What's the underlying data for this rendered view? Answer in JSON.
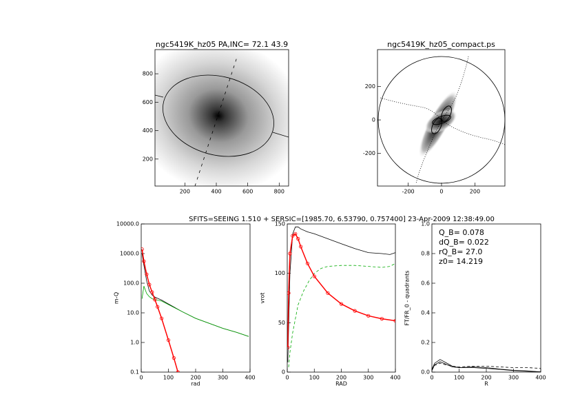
{
  "suptitle": "SFITS=SEEING 1.510 + SERSIC=[1985.70, 6.53790, 0.757400]  23-Apr-2009 12:38:49.00",
  "chart_data": [
    {
      "type": "image",
      "title": "ngc5419K_hz05 PA,INC= 72.1 43.9",
      "xlim": [
        10,
        860
      ],
      "ylim": [
        10,
        970
      ],
      "xticks": [
        200,
        400,
        600,
        800
      ],
      "yticks": [
        200,
        400,
        600,
        800
      ]
    },
    {
      "type": "image",
      "title": "ngc5419K_hz05_compact.ps",
      "xlim": [
        -384,
        380
      ],
      "ylim": [
        -395,
        420
      ],
      "xticks": [
        -200,
        0,
        200
      ],
      "yticks": [
        -200,
        0,
        200
      ]
    },
    {
      "type": "line",
      "x_label": "rad",
      "y_label": "m-Q",
      "log_y": true,
      "xlim": [
        0,
        400
      ],
      "ylim": [
        0.1,
        10000
      ],
      "xticks": [
        0,
        100,
        200,
        300,
        400
      ],
      "yticks": [
        {
          "value": 0.1,
          "label": "0.1"
        },
        {
          "value": 1,
          "label": "1.0"
        },
        {
          "value": 10,
          "label": "10.0"
        },
        {
          "value": 100,
          "label": "100.0"
        },
        {
          "value": 1000,
          "label": "1000.0"
        },
        {
          "value": 10000,
          "label": "10000.0"
        }
      ],
      "series": [
        {
          "color": "#000000",
          "x": [
            3,
            10,
            20,
            30,
            40,
            50,
            75,
            100,
            150,
            200,
            250,
            300,
            350,
            395
          ],
          "values": [
            1000,
            400,
            120,
            55,
            40,
            34,
            27,
            20,
            11,
            6.5,
            4.4,
            3,
            2.2,
            1.6
          ]
        },
        {
          "color": "#00aa00",
          "x": [
            3,
            10,
            20,
            30,
            40,
            50,
            75,
            100,
            150,
            200,
            250,
            300,
            350,
            395
          ],
          "values": [
            30,
            80,
            45,
            35,
            30,
            28,
            25,
            19,
            11,
            6.5,
            4.4,
            3,
            2.2,
            1.6
          ]
        },
        {
          "color": "#ff0000",
          "marker": "circle",
          "x": [
            3,
            10,
            20,
            30,
            40,
            50,
            60,
            75,
            100,
            120,
            135
          ],
          "values": [
            1400,
            550,
            200,
            90,
            50,
            28,
            16,
            6.5,
            1.2,
            0.3,
            0.1
          ]
        }
      ]
    },
    {
      "type": "line",
      "x_label": "RAD",
      "y_label": "vrot",
      "xlim": [
        0,
        400
      ],
      "ylim": [
        0,
        150
      ],
      "xticks": [
        0,
        100,
        200,
        300,
        400
      ],
      "yticks": [
        0,
        50,
        100,
        150
      ],
      "series": [
        {
          "color": "#000000",
          "x": [
            2,
            10,
            20,
            30,
            40,
            50,
            75,
            100,
            150,
            200,
            250,
            300,
            350,
            380,
            400
          ],
          "values": [
            10,
            100,
            140,
            147,
            147,
            145,
            142,
            140,
            135,
            130,
            125,
            121,
            120,
            119,
            121
          ]
        },
        {
          "color": "#00aa00",
          "dash": true,
          "x": [
            5,
            10,
            20,
            40,
            60,
            80,
            100,
            125,
            150,
            200,
            250,
            300,
            350,
            380,
            400
          ],
          "values": [
            5,
            20,
            40,
            68,
            82,
            92,
            100,
            105,
            107,
            108,
            108,
            107,
            106,
            107,
            110
          ]
        },
        {
          "color": "#ff0000",
          "marker": "circle",
          "x": [
            2,
            5,
            10,
            20,
            30,
            40,
            50,
            75,
            100,
            150,
            200,
            250,
            300,
            350,
            400
          ],
          "values": [
            25,
            80,
            120,
            138,
            140,
            135,
            127,
            110,
            97,
            80,
            69,
            62,
            57,
            54,
            52
          ]
        }
      ]
    },
    {
      "type": "line",
      "x_label": "R",
      "y_label": "FT/FR_0 - quadrants",
      "xlim": [
        0,
        400
      ],
      "ylim": [
        0,
        1
      ],
      "xticks": [
        0,
        100,
        200,
        300,
        400
      ],
      "yticks": [
        {
          "value": 0,
          "label": "0.0"
        },
        0.2,
        0.4,
        0.6,
        0.8,
        {
          "value": 1,
          "label": "1.0"
        }
      ],
      "annotations": [
        "Q_B=  0.078",
        "dQ_B=  0.022",
        "rQ_B=   27.0",
        "z0= 14.219"
      ],
      "series": [
        {
          "color": "#000000",
          "x": [
            0,
            10,
            30,
            50,
            75,
            100,
            150,
            200,
            250,
            300,
            350,
            400
          ],
          "values": [
            0.02,
            0.06,
            0.085,
            0.065,
            0.04,
            0.03,
            0.035,
            0.03,
            0.02,
            0.012,
            0.008,
            0.002
          ]
        },
        {
          "color": "#000000",
          "x": [
            0,
            10,
            30,
            50,
            75,
            100,
            150,
            200,
            250,
            300,
            350,
            400
          ],
          "values": [
            0.01,
            0.05,
            0.07,
            0.055,
            0.035,
            0.03,
            0.03,
            0.025,
            0.018,
            0.01,
            0.006,
            0.001
          ]
        },
        {
          "color": "#000000",
          "dash": true,
          "x": [
            0,
            10,
            30,
            50,
            75,
            100,
            150,
            200,
            250,
            300,
            350,
            400
          ],
          "values": [
            0.015,
            0.045,
            0.06,
            0.05,
            0.04,
            0.035,
            0.04,
            0.04,
            0.035,
            0.03,
            0.03,
            0.025
          ]
        }
      ]
    }
  ]
}
